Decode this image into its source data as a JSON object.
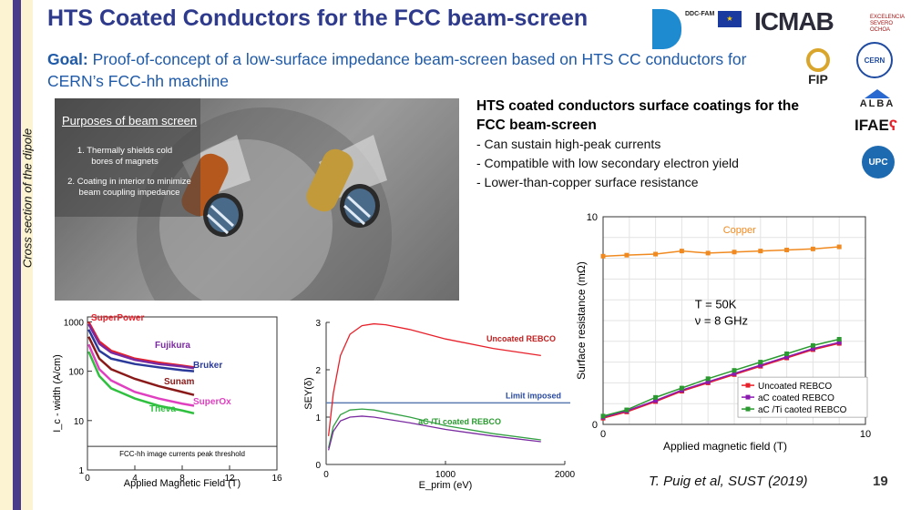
{
  "slide": {
    "title": "HTS Coated Conductors for the FCC beam-screen",
    "goal_label": "Goal:",
    "goal_text": " Proof-of-concept of a low-surface impedance beam-screen based on HTS CC conductors for CERN’s FCC-hh machine",
    "citation": "T. Puig et al, SUST (2019)",
    "page_number": "19",
    "accent_color": "#2e3a8c"
  },
  "logos": {
    "ddcfam": "DDC-FAM",
    "icmab": "ICMAB",
    "excelencia": "EXCELENCIA SEVERO OCHOA",
    "fip": "FIP",
    "cern": "CERN",
    "alba": "ALBA",
    "ifae": "IFAE",
    "upc": "UPC"
  },
  "photo": {
    "side_label": "Cross section of the dipole",
    "purposes_title": "Purposes of beam screen",
    "purpose_1": "1.    Thermally shields cold bores of magnets",
    "purpose_2": "2.    Coating in interior to minimize beam coupling impedance"
  },
  "hts": {
    "heading": "HTS coated conductors surface coatings for the FCC beam-screen",
    "items": [
      "- Can sustain high-peak currents",
      "- Compatible with low secondary electron yield",
      "- Lower-than-copper surface resistance"
    ]
  },
  "chart_data": [
    {
      "type": "line",
      "ylabel": "I_c - width (A/cm)",
      "xlabel": "Applied Magnetic Field (T)",
      "xlim": [
        0,
        16
      ],
      "ylim": [
        1,
        1000
      ],
      "yscale": "log",
      "x_ticks": [
        "0",
        "4",
        "8",
        "12",
        "16"
      ],
      "y_ticks": [
        "1",
        "10",
        "100",
        "1000"
      ],
      "annotation": "FCC-hh image currents peak threshold",
      "threshold": 3,
      "series": [
        {
          "name": "SuperPower",
          "color": "#e8202a",
          "x": [
            0.1,
            1,
            2,
            4,
            6,
            8,
            9
          ],
          "y": [
            1000,
            400,
            260,
            180,
            150,
            130,
            120
          ]
        },
        {
          "name": "Fujikura",
          "color": "#7a2aa0",
          "x": [
            0.1,
            1,
            2,
            4,
            6,
            8,
            9
          ],
          "y": [
            900,
            360,
            240,
            170,
            140,
            125,
            115
          ]
        },
        {
          "name": "Bruker",
          "color": "#2a3a9a",
          "x": [
            0.1,
            1,
            2,
            4,
            6,
            8,
            9
          ],
          "y": [
            700,
            260,
            180,
            140,
            120,
            105,
            100
          ]
        },
        {
          "name": "Sunam",
          "color": "#8a1a1a",
          "x": [
            0.1,
            1,
            2,
            4,
            6,
            8,
            9
          ],
          "y": [
            500,
            180,
            110,
            70,
            50,
            38,
            33
          ]
        },
        {
          "name": "SuperOx",
          "color": "#e040c0",
          "x": [
            0.1,
            1,
            2,
            4,
            6,
            8,
            9
          ],
          "y": [
            350,
            110,
            65,
            38,
            28,
            22,
            20
          ]
        },
        {
          "name": "Theva",
          "color": "#30c040",
          "x": [
            0.1,
            1,
            2,
            4,
            6,
            8,
            9
          ],
          "y": [
            250,
            80,
            45,
            28,
            20,
            16,
            14
          ]
        }
      ]
    },
    {
      "type": "line",
      "ylabel": "SEY(δ)",
      "xlabel": "E_prim (eV)",
      "xlim": [
        0,
        2000
      ],
      "ylim": [
        0,
        3
      ],
      "x_ticks": [
        "0",
        "1000",
        "2000"
      ],
      "y_ticks": [
        "0",
        "1",
        "2",
        "3"
      ],
      "limit_label": "Limit imposed",
      "limit_value": 1.3,
      "series": [
        {
          "name": "Uncoated REBCO",
          "color": "#e8202a",
          "x": [
            20,
            60,
            120,
            200,
            300,
            400,
            500,
            700,
            1000,
            1400,
            1800
          ],
          "y": [
            0.6,
            1.5,
            2.3,
            2.75,
            2.93,
            2.97,
            2.95,
            2.85,
            2.65,
            2.45,
            2.3
          ]
        },
        {
          "name": "aC /Ti coated REBCO",
          "color": "#30a040",
          "x": [
            20,
            60,
            120,
            200,
            300,
            400,
            500,
            700,
            1000,
            1400,
            1800
          ],
          "y": [
            0.35,
            0.8,
            1.05,
            1.15,
            1.17,
            1.15,
            1.1,
            1.0,
            0.82,
            0.65,
            0.52
          ]
        },
        {
          "name": "",
          "color": "#7a2aa0",
          "x": [
            20,
            60,
            120,
            200,
            300,
            400,
            500,
            700,
            1000,
            1400,
            1800
          ],
          "y": [
            0.3,
            0.7,
            0.92,
            1.0,
            1.02,
            1.0,
            0.96,
            0.88,
            0.74,
            0.6,
            0.48
          ]
        }
      ]
    },
    {
      "type": "line",
      "ylabel": "Surface resistance (mΩ)",
      "xlabel": "Applied magnetic field (T)",
      "xlim": [
        0,
        10
      ],
      "ylim": [
        0,
        10
      ],
      "x_ticks": [
        "0",
        "10"
      ],
      "y_ticks": [
        "0",
        "10"
      ],
      "annotations": [
        "Copper",
        "T = 50K",
        "ν = 8 GHz"
      ],
      "legend": "bottom-right",
      "copper": {
        "color": "#f08a20",
        "x": [
          0,
          0.9,
          2,
          3,
          4,
          5,
          6,
          7,
          8,
          9
        ],
        "y": [
          8.1,
          8.15,
          8.2,
          8.35,
          8.25,
          8.3,
          8.35,
          8.4,
          8.45,
          8.55
        ]
      },
      "series": [
        {
          "name": "Uncoated REBCO",
          "color": "#e8202a",
          "x": [
            0,
            0.9,
            2,
            3,
            4,
            5,
            6,
            7,
            8,
            9
          ],
          "y": [
            0.3,
            0.6,
            1.1,
            1.6,
            2.0,
            2.4,
            2.8,
            3.2,
            3.6,
            3.9
          ]
        },
        {
          "name": "aC coated REBCO",
          "color": "#8a1ab0",
          "x": [
            0,
            0.9,
            2,
            3,
            4,
            5,
            6,
            7,
            8,
            9
          ],
          "y": [
            0.35,
            0.65,
            1.15,
            1.65,
            2.05,
            2.45,
            2.85,
            3.25,
            3.65,
            3.95
          ]
        },
        {
          "name": "aC /Ti caoted REBCO",
          "color": "#2a9a30",
          "x": [
            0,
            0.9,
            2,
            3,
            4,
            5,
            6,
            7,
            8,
            9
          ],
          "y": [
            0.4,
            0.7,
            1.3,
            1.75,
            2.2,
            2.6,
            3.0,
            3.4,
            3.8,
            4.1
          ]
        }
      ]
    }
  ]
}
